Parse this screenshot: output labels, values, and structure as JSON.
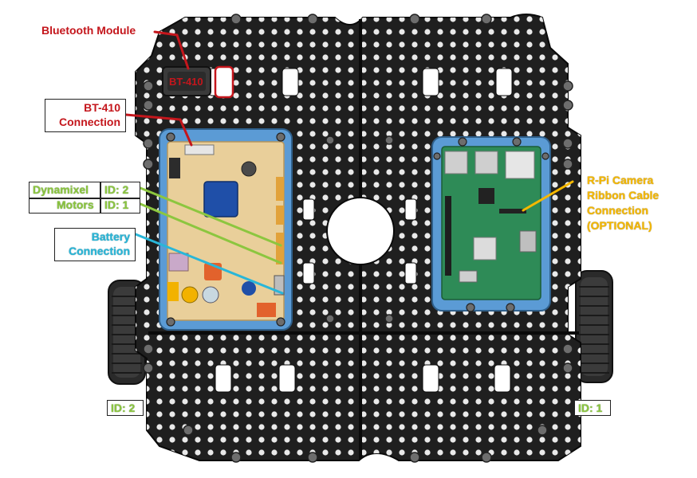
{
  "labels": {
    "bluetooth_module": "Bluetooth Module",
    "bt410_chip": "BT-410",
    "bt410_conn_line1": "BT-410",
    "bt410_conn_line2": "Connection",
    "dynamixel": "Dynamixel",
    "motors": "Motors",
    "id2_motor": "ID: 2",
    "id1_motor": "ID: 1",
    "battery_line1": "Battery",
    "battery_line2": "Connection",
    "rpi_line1": "R-Pi Camera",
    "rpi_line2": "Ribbon Cable",
    "rpi_line3": "Connection",
    "rpi_line4": "(OPTIONAL)",
    "wheel_left_id": "ID: 2",
    "wheel_right_id": "ID: 1"
  },
  "colors": {
    "red": "#c4161c",
    "green": "#8cc63f",
    "cyan": "#29b6d8",
    "gold": "#f5b800",
    "plate": "#1f1f1f",
    "controller_case": "#5b9bd5",
    "controller_board": "#e9cf9a",
    "rpi_board": "#2e8b57"
  }
}
